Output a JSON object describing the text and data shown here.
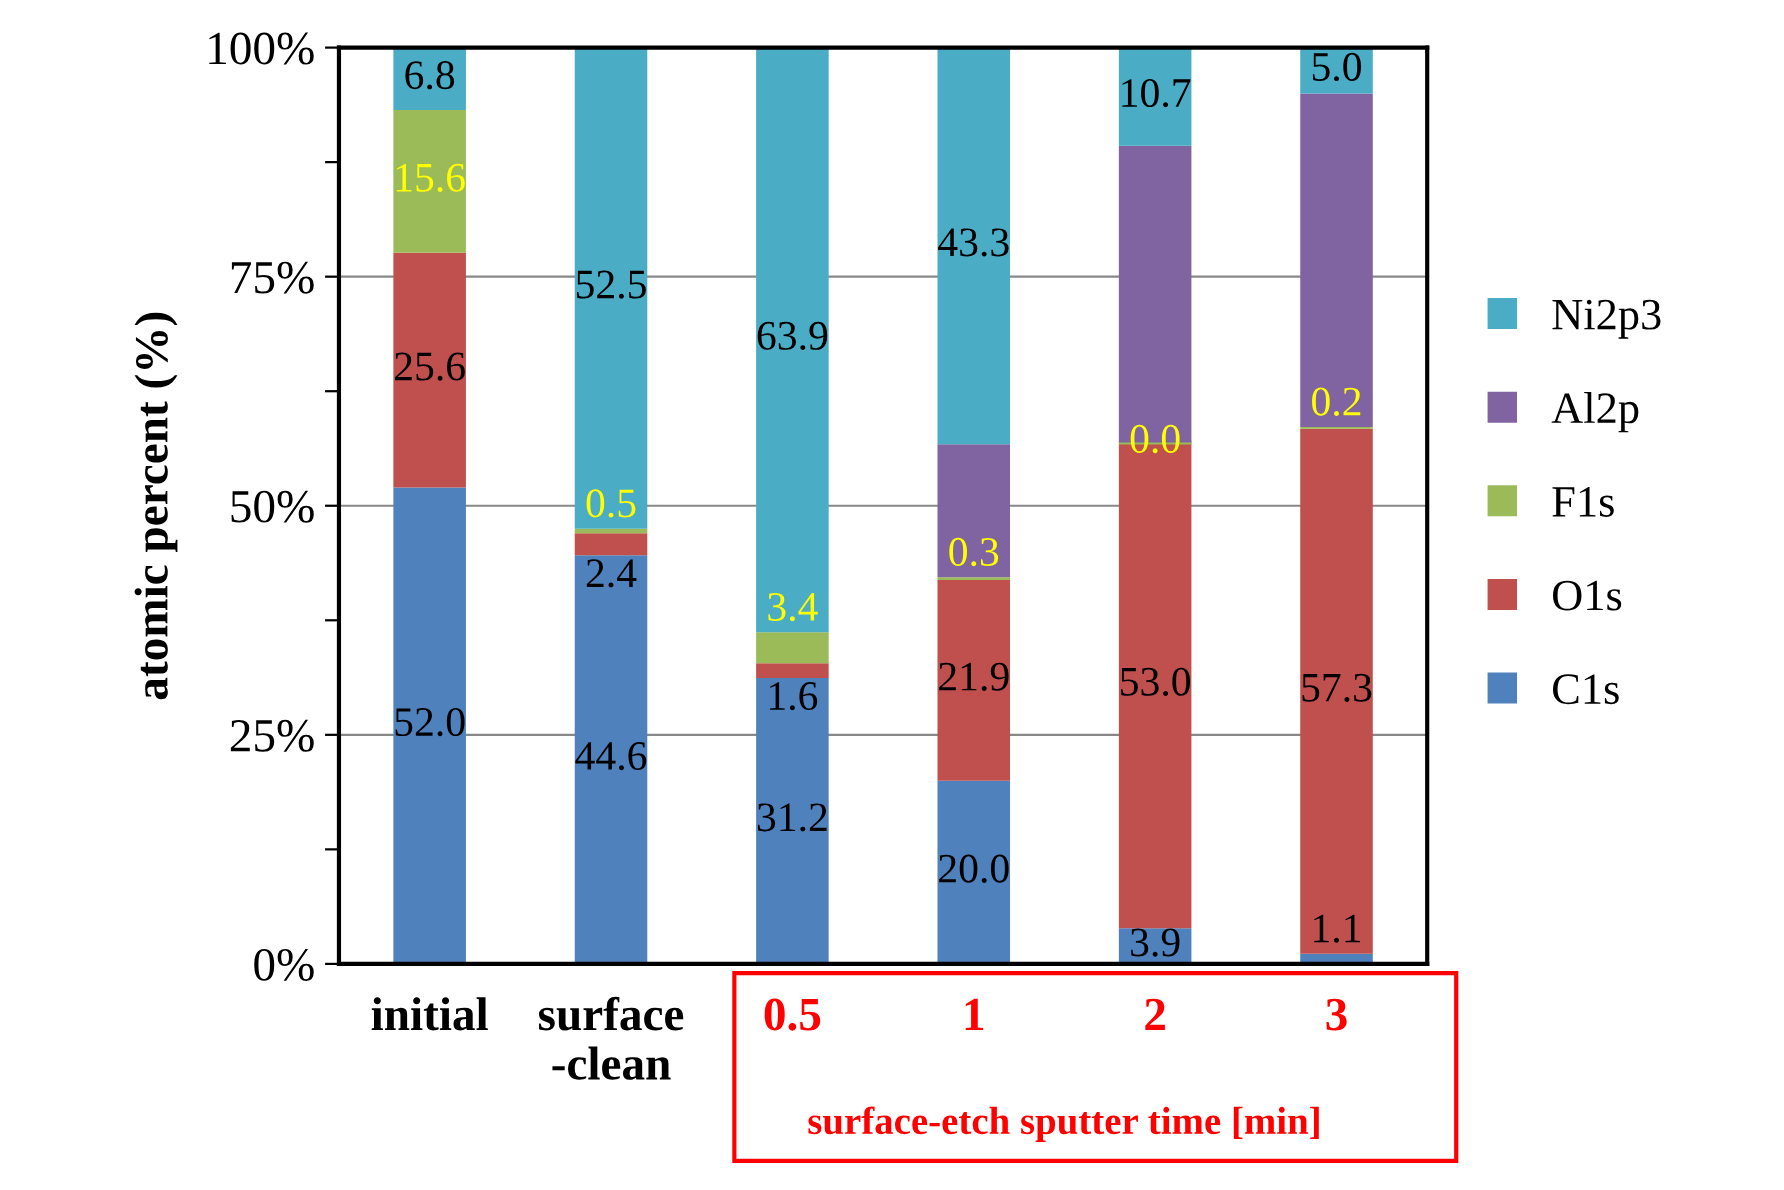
{
  "chart_data": {
    "type": "bar",
    "stacked": true,
    "ylabel": "atomic percent (%)",
    "categories": [
      "initial",
      "surface\n-clean",
      "0.5",
      "1",
      "2",
      "3"
    ],
    "series": [
      {
        "name": "C1s",
        "color": "#4f81bd",
        "values": [
          52.0,
          44.6,
          31.2,
          20.0,
          3.9,
          1.1
        ],
        "value_labels": [
          "52.0",
          "44.6",
          "31.2",
          "20.0",
          "3.9",
          "1.1"
        ]
      },
      {
        "name": "O1s",
        "color": "#c0504d",
        "values": [
          25.6,
          2.4,
          1.6,
          21.9,
          53.0,
          57.3
        ],
        "value_labels": [
          "25.6",
          "2.4",
          "1.6",
          "21.9",
          "53.0",
          "57.3"
        ]
      },
      {
        "name": "F1s",
        "color": "#9bbb59",
        "values": [
          15.6,
          0.5,
          3.4,
          0.3,
          0.0,
          0.2
        ],
        "value_labels": [
          "15.6",
          "0.5",
          "3.4",
          "0.3",
          "0.0",
          "0.2"
        ]
      },
      {
        "name": "Al2p",
        "color": "#8064a2",
        "values": [
          null,
          null,
          null,
          14.5,
          32.4,
          36.4
        ],
        "value_labels": [
          null,
          null,
          null,
          null,
          null,
          null
        ]
      },
      {
        "name": "Ni2p3",
        "color": "#4bacc6",
        "values": [
          6.8,
          52.5,
          63.9,
          43.3,
          10.7,
          5.0
        ],
        "value_labels": [
          "6.8",
          "52.5",
          "63.9",
          "43.3",
          "10.7",
          "5.0"
        ]
      }
    ],
    "ylim": [
      0,
      100
    ],
    "yticks": [
      {
        "value": 0,
        "label": "0%"
      },
      {
        "value": 12.5,
        "label": null
      },
      {
        "value": 25,
        "label": "25%"
      },
      {
        "value": 37.5,
        "label": null
      },
      {
        "value": 50,
        "label": "50%"
      },
      {
        "value": 62.5,
        "label": null
      },
      {
        "value": 75,
        "label": "75%"
      },
      {
        "value": 87.5,
        "label": null
      },
      {
        "value": 100,
        "label": "100%"
      }
    ],
    "grid": "y",
    "legend": "right",
    "annotations": [
      "surface-etch sputter time [min]"
    ]
  }
}
